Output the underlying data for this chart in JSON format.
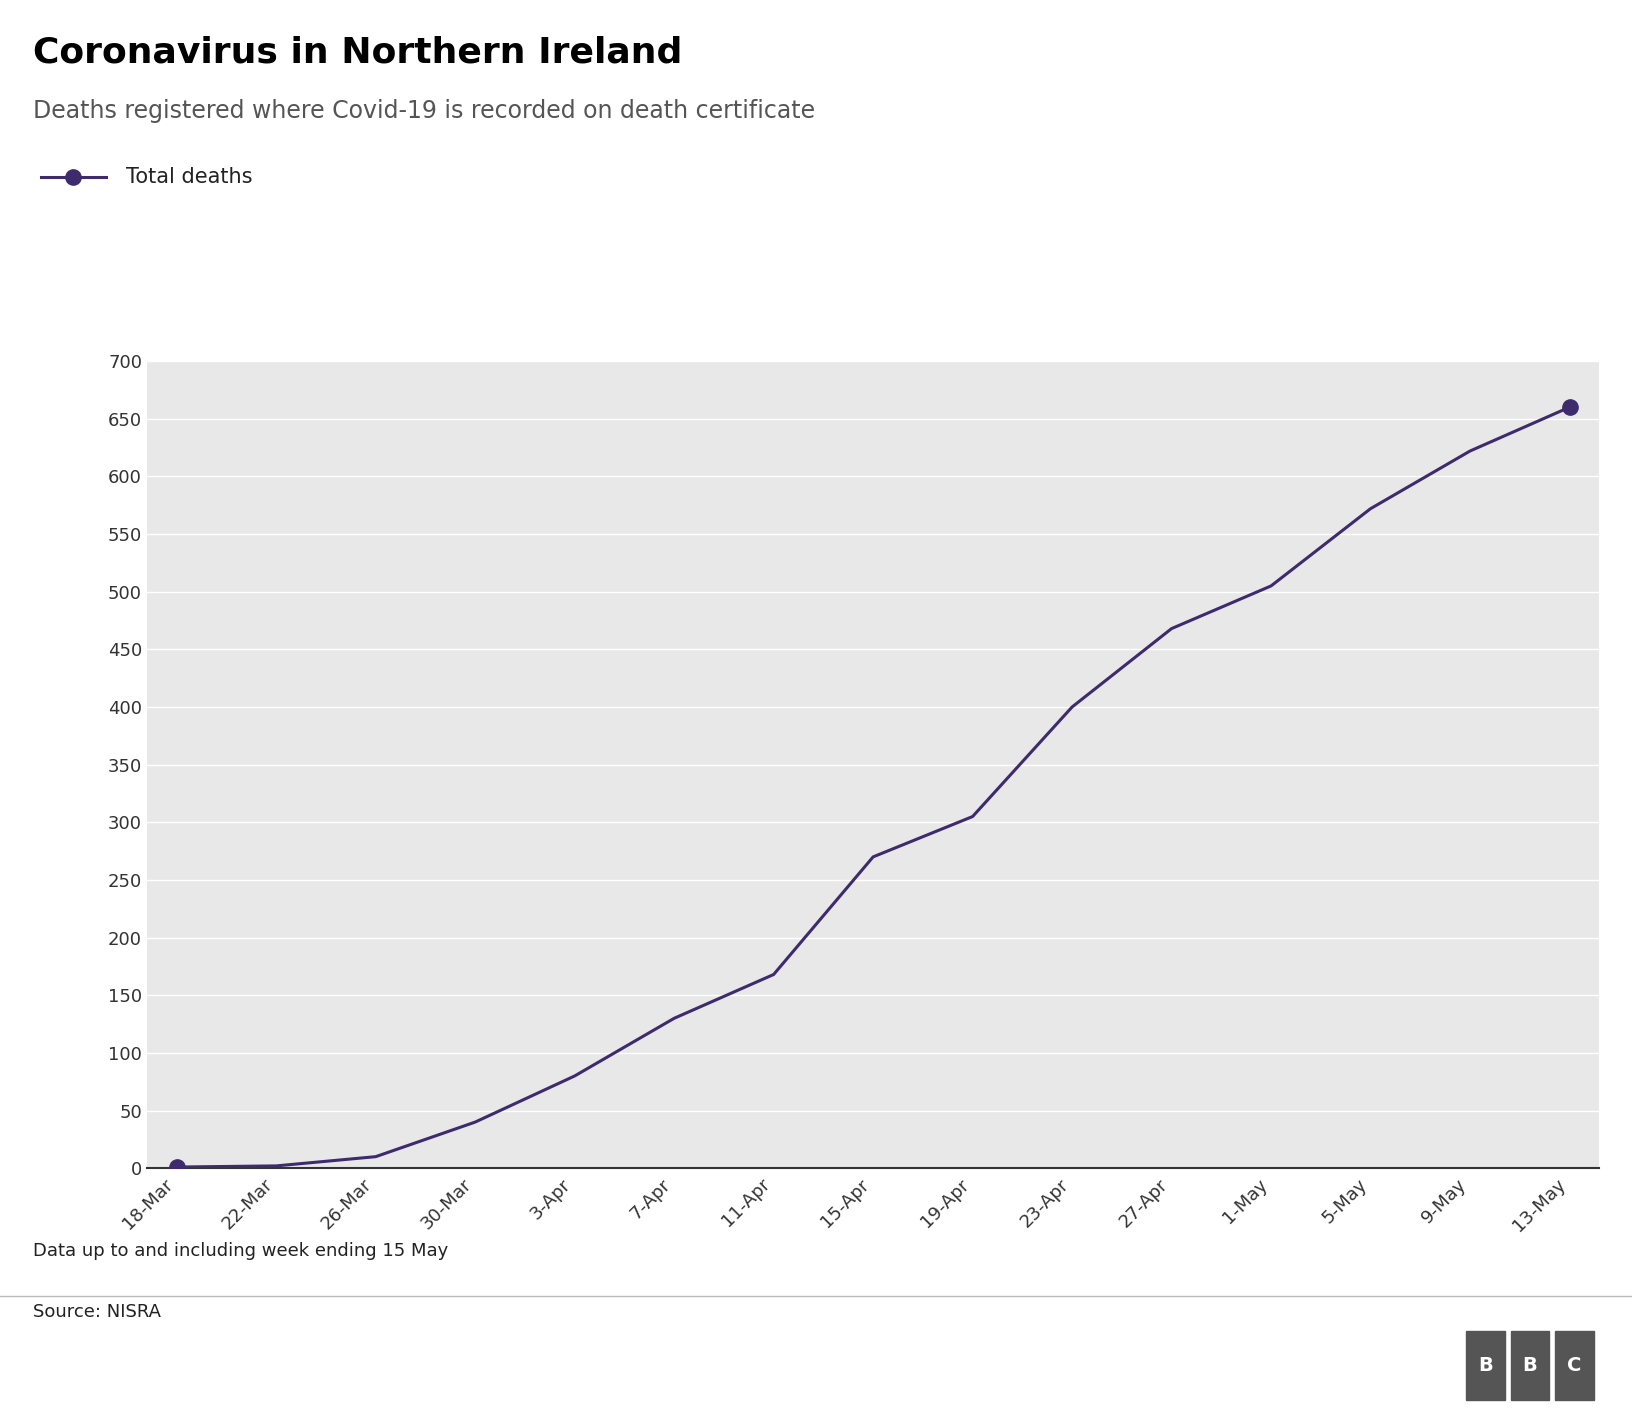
{
  "title": "Coronavirus in Northern Ireland",
  "subtitle": "Deaths registered where Covid-19 is recorded on death certificate",
  "legend_label": "Total deaths",
  "footer_note": "Data up to and including week ending 15 May",
  "source": "Source: NISRA",
  "line_color": "#3d2b6e",
  "marker_color": "#3d2b6e",
  "background_color": "#ffffff",
  "plot_bg_color": "#e8e8e8",
  "grid_color": "#ffffff",
  "ylim": [
    0,
    700
  ],
  "yticks": [
    0,
    50,
    100,
    150,
    200,
    250,
    300,
    350,
    400,
    450,
    500,
    550,
    600,
    650,
    700
  ],
  "x_labels": [
    "18-Mar",
    "22-Mar",
    "26-Mar",
    "30-Mar",
    "3-Apr",
    "7-Apr",
    "11-Apr",
    "15-Apr",
    "19-Apr",
    "23-Apr",
    "27-Apr",
    "1-May",
    "5-May",
    "9-May",
    "13-May"
  ],
  "data": [
    {
      "x": "18-Mar",
      "y": 1
    },
    {
      "x": "22-Mar",
      "y": 2
    },
    {
      "x": "26-Mar",
      "y": 10
    },
    {
      "x": "30-Mar",
      "y": 40
    },
    {
      "x": "3-Apr",
      "y": 80
    },
    {
      "x": "7-Apr",
      "y": 130
    },
    {
      "x": "11-Apr",
      "y": 168
    },
    {
      "x": "15-Apr",
      "y": 270
    },
    {
      "x": "19-Apr",
      "y": 305
    },
    {
      "x": "23-Apr",
      "y": 400
    },
    {
      "x": "27-Apr",
      "y": 468
    },
    {
      "x": "1-May",
      "y": 505
    },
    {
      "x": "5-May",
      "y": 572
    },
    {
      "x": "9-May",
      "y": 622
    },
    {
      "x": "13-May",
      "y": 660
    }
  ]
}
